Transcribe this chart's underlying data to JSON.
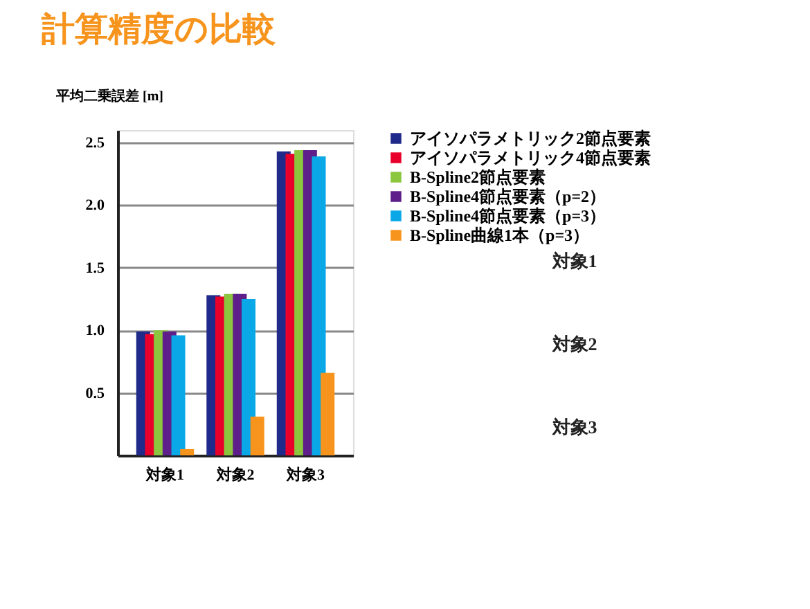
{
  "chart_data": {
    "type": "bar",
    "title": "計算精度の比較",
    "ylabel": "平均二乗誤差 [m]",
    "categories": [
      "対象1",
      "対象2",
      "対象3"
    ],
    "series": [
      {
        "name": "アイソパラメトリック2節点要素",
        "color": "#1f2a8a",
        "values": [
          0.99,
          1.28,
          2.43
        ]
      },
      {
        "name": "アイソパラメトリック4節点要素",
        "color": "#e8002a",
        "values": [
          0.97,
          1.27,
          2.41
        ]
      },
      {
        "name": "B-Spline2節点要素",
        "color": "#8cc63f",
        "values": [
          1.0,
          1.29,
          2.44
        ]
      },
      {
        "name": "B-Spline4節点要素（p=2）",
        "color": "#5e1f8a",
        "values": [
          0.99,
          1.29,
          2.44
        ]
      },
      {
        "name": "B-Spline4節点要素（p=3）",
        "color": "#0aa8e6",
        "values": [
          0.96,
          1.25,
          2.39
        ]
      },
      {
        "name": "B-Spline曲線1本（p=3）",
        "color": "#f7941d",
        "values": [
          0.05,
          0.31,
          0.66
        ]
      }
    ],
    "ylim": [
      0,
      2.6
    ],
    "yticks": [
      0.5,
      {
        "value": 1,
        "label": "1.0"
      },
      1.5,
      {
        "value": 2,
        "label": "2.0"
      },
      2.5
    ],
    "grid": "y",
    "legend": "right",
    "annotations": [
      "対象1",
      "対象2",
      "対象3"
    ]
  }
}
